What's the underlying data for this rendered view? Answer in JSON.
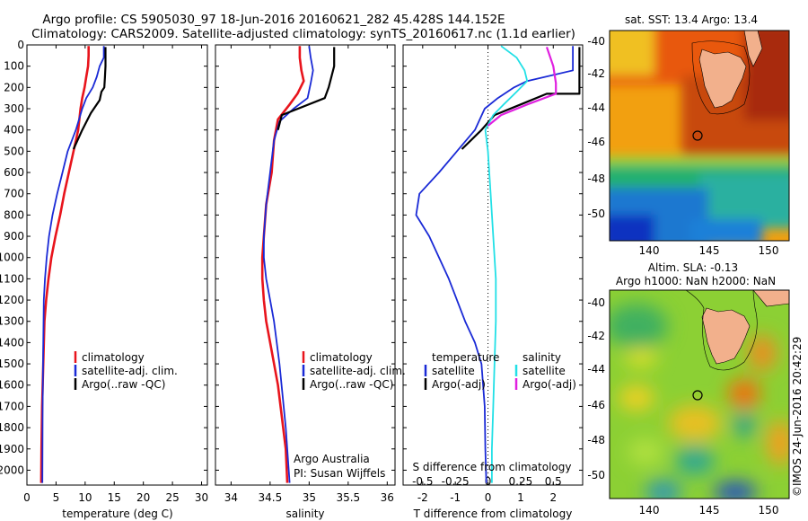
{
  "title": {
    "line1": "Argo profile: CS 5905030_97 18-Jun-2016 20160621_282 45.428S 144.152E",
    "line2": "Climatology: CARS2009. Satellite-adjusted climatology: synTS_20160617.nc (1.1d earlier)"
  },
  "colors": {
    "climatology": "#e8141c",
    "satellite": "#1a2ad6",
    "argo": "#000000",
    "sal_satellite": "#22e0e6",
    "sal_argo": "#e020e0"
  },
  "legend": {
    "climatology": "climatology",
    "satellite_adj": "satellite-adj. clim.",
    "argo_raw": "Argo(..raw -QC)",
    "temperature": "temperature",
    "salinity": "salinity",
    "satellite": "satellite",
    "argo_adj": "Argo(-adj)"
  },
  "annotations": {
    "argo_australia": "Argo Australia",
    "pi": "PI: Susan Wijffels",
    "credit": "©IMOS 24-Jun-2016 20:42:29"
  },
  "maps": {
    "sst_title": "sat. SST: 13.4 Argo: 13.4",
    "sla_title1": "Altim. SLA: -0.13",
    "sla_title2": "Argo h1000: NaN h2000: NaN",
    "lon_ticks": [
      140,
      145,
      150
    ],
    "lat_ticks": [
      -40,
      -42,
      -44,
      -46,
      -48,
      -50
    ],
    "argo_position": {
      "lon": 144.152,
      "lat": -45.428
    }
  },
  "chart_data": [
    {
      "type": "line",
      "name": "temperature-profile",
      "xlabel": "temperature (deg C)",
      "ylabel": "",
      "xlim": [
        0,
        31
      ],
      "ylim": [
        2070,
        0
      ],
      "xticks": [
        0,
        5,
        10,
        15,
        20,
        25,
        30
      ],
      "yticks": [
        0,
        100,
        200,
        300,
        400,
        500,
        600,
        700,
        800,
        900,
        1000,
        1100,
        1200,
        1300,
        1400,
        1500,
        1600,
        1700,
        1800,
        1900,
        2000
      ],
      "series": [
        {
          "name": "climatology",
          "x": [
            10.6,
            10.6,
            10.5,
            10.2,
            9.9,
            9.5,
            9.2,
            8.8,
            8.0,
            7.2,
            6.4,
            5.7,
            4.9,
            4.2,
            3.7,
            3.3,
            3.0,
            2.8,
            2.6,
            2.5,
            2.45
          ],
          "y": [
            5,
            50,
            100,
            150,
            200,
            250,
            300,
            400,
            500,
            600,
            700,
            800,
            900,
            1000,
            1100,
            1200,
            1300,
            1500,
            1700,
            1900,
            2060
          ]
        },
        {
          "name": "satellite-adj. clim.",
          "x": [
            13.2,
            13.2,
            12.5,
            12.0,
            11.3,
            10.2,
            9.5,
            8.4,
            7.0,
            6.1,
            5.2,
            4.4,
            3.8,
            3.4,
            3.1,
            2.9,
            2.8,
            2.7,
            2.65
          ],
          "y": [
            5,
            60,
            100,
            150,
            200,
            250,
            300,
            400,
            500,
            600,
            700,
            800,
            900,
            1000,
            1100,
            1200,
            1400,
            1700,
            2060
          ]
        },
        {
          "name": "Argo(..raw -QC)",
          "x": [
            13.5,
            13.5,
            13.4,
            13.3,
            12.8,
            12.5,
            11.0,
            9.5,
            8.0
          ],
          "y": [
            10,
            100,
            150,
            200,
            220,
            260,
            320,
            400,
            490
          ]
        }
      ]
    },
    {
      "type": "line",
      "name": "salinity-profile",
      "xlabel": "salinity",
      "ylabel": "",
      "xlim": [
        33.8,
        36.1
      ],
      "ylim": [
        2070,
        0
      ],
      "xticks": [
        34,
        34.5,
        35,
        35.5,
        36
      ],
      "series": [
        {
          "name": "climatology",
          "x": [
            34.88,
            34.88,
            34.9,
            34.93,
            34.85,
            34.75,
            34.6,
            34.55,
            34.52,
            34.45,
            34.42,
            34.4,
            34.4,
            34.42,
            34.45,
            34.5,
            34.6,
            34.7,
            34.72
          ],
          "y": [
            5,
            60,
            120,
            170,
            230,
            280,
            350,
            450,
            600,
            750,
            900,
            1000,
            1100,
            1200,
            1300,
            1400,
            1600,
            1900,
            2060
          ]
        },
        {
          "name": "satellite-adj. clim.",
          "x": [
            35.0,
            35.02,
            35.05,
            35.02,
            34.98,
            34.8,
            34.62,
            34.55,
            34.5,
            34.45,
            34.42,
            34.42,
            34.45,
            34.5,
            34.55,
            34.62,
            34.7,
            34.75
          ],
          "y": [
            5,
            60,
            120,
            180,
            250,
            300,
            360,
            450,
            600,
            750,
            900,
            1000,
            1100,
            1200,
            1300,
            1500,
            1800,
            2060
          ]
        },
        {
          "name": "Argo(..raw -QC)",
          "x": [
            35.32,
            35.32,
            35.25,
            35.2,
            34.65,
            34.6
          ],
          "y": [
            10,
            100,
            200,
            250,
            330,
            400
          ]
        }
      ]
    },
    {
      "type": "line",
      "name": "difference-from-climatology",
      "xlabel": "T difference from climatology",
      "xlabel2": "S difference from climatology",
      "xlim": [
        -2.6,
        2.9
      ],
      "x2lim": [
        -0.65,
        0.725
      ],
      "ylim": [
        2070,
        0
      ],
      "xticks": [
        -2,
        -1,
        0,
        1,
        2
      ],
      "x2ticks": [
        -0.5,
        -0.25,
        0,
        0.25,
        0.5
      ],
      "x2ticklabels": [
        "-0.5",
        "-0.25",
        "0",
        "0.25",
        "0.5"
      ],
      "series": [
        {
          "name": "temperature satellite",
          "x": [
            2.6,
            2.6,
            1.2,
            0.8,
            0.3,
            -0.1,
            -0.4,
            -1.5,
            -2.1,
            -2.2,
            -1.8,
            -1.2,
            -0.7,
            -0.4,
            -0.2,
            -0.1,
            -0.08,
            -0.05
          ],
          "y": [
            5,
            120,
            170,
            200,
            250,
            300,
            400,
            600,
            700,
            800,
            900,
            1100,
            1300,
            1400,
            1500,
            1700,
            1900,
            2060
          ]
        },
        {
          "name": "temperature Argo(-adj)",
          "x": [
            2.8,
            2.8,
            1.8,
            1.0,
            0.2,
            -0.2,
            -0.8
          ],
          "y": [
            10,
            230,
            230,
            280,
            330,
            400,
            490
          ]
        },
        {
          "name": "salinity satellite",
          "x2": [
            0.1,
            0.22,
            0.28,
            0.3,
            0.22,
            0.12,
            0.04,
            -0.02,
            0.0,
            0.02,
            0.04,
            0.06,
            0.06,
            0.05,
            0.04,
            0.03,
            0.03
          ],
          "y": [
            5,
            60,
            120,
            170,
            220,
            280,
            330,
            400,
            500,
            700,
            900,
            1100,
            1300,
            1500,
            1700,
            1900,
            2060
          ]
        },
        {
          "name": "salinity Argo(-adj)",
          "x2": [
            0.45,
            0.5,
            0.52,
            0.52,
            0.3,
            0.1,
            0.0
          ],
          "y": [
            10,
            100,
            180,
            230,
            280,
            330,
            380
          ]
        }
      ]
    }
  ]
}
